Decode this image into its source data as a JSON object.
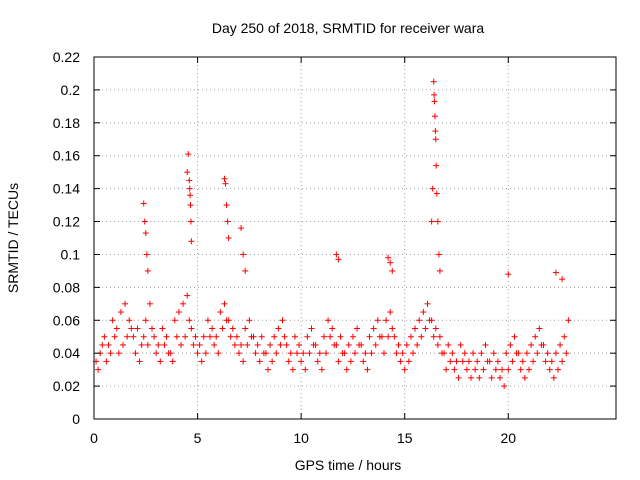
{
  "chart_data": {
    "type": "scatter",
    "title": "Day 250 of 2018, SRMTID for receiver wara",
    "xlabel": "GPS time / hours",
    "ylabel": "SRMTID / TECUs",
    "xlim": [
      0,
      25.2
    ],
    "ylim": [
      0,
      0.22
    ],
    "x_ticks": [
      0,
      5,
      10,
      15,
      20
    ],
    "x_tick_labels": [
      "0",
      "5",
      "10",
      "15",
      "20"
    ],
    "y_ticks": [
      0,
      0.02,
      0.04,
      0.06,
      0.08,
      0.1,
      0.12,
      0.14,
      0.16,
      0.18,
      0.2,
      0.22
    ],
    "y_tick_labels": [
      "0",
      "0.02",
      "0.04",
      "0.06",
      "0.08",
      "0.1",
      "0.12",
      "0.14",
      "0.16",
      "0.18",
      "0.2",
      "0.22"
    ],
    "grid": true,
    "marker": "+",
    "marker_color": "#ff0000",
    "series": [
      {
        "name": "SRMTID",
        "x": [
          0.1,
          0.3,
          0.5,
          0.7,
          0.9,
          1.1,
          1.3,
          1.5,
          1.7,
          1.9,
          2.1,
          2.3,
          2.5,
          2.7,
          2.9,
          3.1,
          3.3,
          3.5,
          3.7,
          3.9,
          4.1,
          4.3,
          4.5,
          4.7,
          4.9,
          5.1,
          5.3,
          5.5,
          5.7,
          5.9,
          6.1,
          6.3,
          6.5,
          6.7,
          6.9,
          7.1,
          7.3,
          7.5,
          7.7,
          7.9,
          8.1,
          8.3,
          8.5,
          8.7,
          8.9,
          9.1,
          9.3,
          9.5,
          9.7,
          9.9,
          10.1,
          10.3,
          10.5,
          10.7,
          10.9,
          11.1,
          11.3,
          11.5,
          11.7,
          11.9,
          12.1,
          12.3,
          12.5,
          12.7,
          12.9,
          13.1,
          13.3,
          13.5,
          13.7,
          13.9,
          14.1,
          14.3,
          14.5,
          14.7,
          14.9,
          15.1,
          15.3,
          15.5,
          15.7,
          15.9,
          16.1,
          16.3,
          16.5,
          16.7,
          16.9,
          17.1,
          17.3,
          17.5,
          17.7,
          17.9,
          18.1,
          18.3,
          18.5,
          18.7,
          18.9,
          19.1,
          19.3,
          19.5,
          19.7,
          19.9,
          20.1,
          20.3,
          20.5,
          20.7,
          20.9,
          21.1,
          21.3,
          21.5,
          21.7,
          21.9,
          22.1,
          22.3,
          22.5,
          22.7,
          22.9,
          0.2,
          0.4,
          0.6,
          0.8,
          1.0,
          1.2,
          1.4,
          1.6,
          1.8,
          2.0,
          2.2,
          2.4,
          2.6,
          2.8,
          3.0,
          3.2,
          3.4,
          3.6,
          3.8,
          4.0,
          4.2,
          4.4,
          4.6,
          4.8,
          5.0,
          5.2,
          5.4,
          5.6,
          5.8,
          6.0,
          6.2,
          6.4,
          6.6,
          6.8,
          7.0,
          7.2,
          7.4,
          7.6,
          7.8,
          8.0,
          8.2,
          8.4,
          8.6,
          8.8,
          9.0,
          9.2,
          9.4,
          9.6,
          9.8,
          10.0,
          10.2,
          10.4,
          10.6,
          10.8,
          11.0,
          11.2,
          11.4,
          11.6,
          11.8,
          12.0,
          12.2,
          12.4,
          12.6,
          12.8,
          13.0,
          13.2,
          13.4,
          13.6,
          13.8,
          14.0,
          14.2,
          14.4,
          14.6,
          14.8,
          15.0,
          15.2,
          15.4,
          15.6,
          15.8,
          16.0,
          16.2,
          16.4,
          16.6,
          16.8,
          17.0,
          17.2,
          17.4,
          17.6,
          17.8,
          18.0,
          18.2,
          18.4,
          18.6,
          18.8,
          19.0,
          19.2,
          19.4,
          19.6,
          19.8,
          20.0,
          20.2,
          20.4,
          20.6,
          20.8,
          21.0,
          21.2,
          21.4,
          21.6,
          21.8,
          22.0,
          22.2,
          22.4,
          22.6,
          22.8,
          2.4,
          2.45,
          2.5,
          2.55,
          2.6,
          4.5,
          4.55,
          4.6,
          4.62,
          4.64,
          4.66,
          4.68,
          4.7,
          6.3,
          6.35,
          6.4,
          6.45,
          6.5,
          7.1,
          7.2,
          7.3,
          16.3,
          16.35,
          16.4,
          16.42,
          16.44,
          16.46,
          16.48,
          16.5,
          16.52,
          16.55,
          16.6,
          16.65,
          16.7,
          14.2,
          14.3,
          14.4,
          11.7,
          11.8,
          20.0,
          22.3,
          22.6
        ],
        "y": [
          0.035,
          0.04,
          0.05,
          0.045,
          0.06,
          0.055,
          0.065,
          0.07,
          0.06,
          0.05,
          0.055,
          0.045,
          0.06,
          0.07,
          0.05,
          0.045,
          0.055,
          0.05,
          0.04,
          0.06,
          0.065,
          0.07,
          0.075,
          0.055,
          0.05,
          0.045,
          0.05,
          0.06,
          0.055,
          0.05,
          0.065,
          0.07,
          0.06,
          0.055,
          0.05,
          0.045,
          0.055,
          0.06,
          0.05,
          0.045,
          0.05,
          0.04,
          0.045,
          0.05,
          0.055,
          0.06,
          0.045,
          0.04,
          0.05,
          0.045,
          0.04,
          0.05,
          0.055,
          0.045,
          0.04,
          0.05,
          0.06,
          0.055,
          0.045,
          0.05,
          0.04,
          0.045,
          0.05,
          0.055,
          0.045,
          0.04,
          0.05,
          0.055,
          0.06,
          0.05,
          0.06,
          0.065,
          0.05,
          0.045,
          0.04,
          0.045,
          0.05,
          0.055,
          0.06,
          0.065,
          0.07,
          0.06,
          0.055,
          0.05,
          0.04,
          0.045,
          0.04,
          0.035,
          0.045,
          0.04,
          0.035,
          0.04,
          0.035,
          0.04,
          0.045,
          0.035,
          0.04,
          0.035,
          0.03,
          0.04,
          0.045,
          0.05,
          0.04,
          0.035,
          0.04,
          0.045,
          0.05,
          0.055,
          0.045,
          0.04,
          0.035,
          0.04,
          0.045,
          0.05,
          0.06,
          0.03,
          0.045,
          0.035,
          0.04,
          0.05,
          0.04,
          0.045,
          0.05,
          0.055,
          0.04,
          0.035,
          0.05,
          0.045,
          0.055,
          0.04,
          0.035,
          0.045,
          0.04,
          0.035,
          0.05,
          0.045,
          0.05,
          0.06,
          0.045,
          0.04,
          0.035,
          0.04,
          0.05,
          0.045,
          0.04,
          0.055,
          0.06,
          0.05,
          0.045,
          0.04,
          0.035,
          0.045,
          0.05,
          0.04,
          0.035,
          0.04,
          0.03,
          0.035,
          0.04,
          0.045,
          0.05,
          0.035,
          0.03,
          0.04,
          0.035,
          0.03,
          0.04,
          0.045,
          0.035,
          0.03,
          0.04,
          0.05,
          0.045,
          0.035,
          0.04,
          0.03,
          0.035,
          0.04,
          0.045,
          0.035,
          0.03,
          0.04,
          0.045,
          0.05,
          0.04,
          0.05,
          0.055,
          0.04,
          0.035,
          0.03,
          0.035,
          0.04,
          0.045,
          0.05,
          0.055,
          0.06,
          0.05,
          0.045,
          0.04,
          0.03,
          0.035,
          0.03,
          0.025,
          0.035,
          0.03,
          0.025,
          0.03,
          0.025,
          0.03,
          0.035,
          0.025,
          0.03,
          0.025,
          0.02,
          0.03,
          0.035,
          0.04,
          0.03,
          0.025,
          0.03,
          0.035,
          0.04,
          0.045,
          0.035,
          0.03,
          0.025,
          0.03,
          0.035,
          0.04,
          0.131,
          0.12,
          0.113,
          0.1,
          0.09,
          0.15,
          0.161,
          0.145,
          0.14,
          0.136,
          0.13,
          0.12,
          0.108,
          0.146,
          0.143,
          0.13,
          0.12,
          0.11,
          0.116,
          0.1,
          0.09,
          0.12,
          0.14,
          0.205,
          0.197,
          0.193,
          0.184,
          0.175,
          0.17,
          0.154,
          0.137,
          0.12,
          0.1,
          0.09,
          0.098,
          0.095,
          0.09,
          0.1,
          0.097,
          0.088,
          0.089,
          0.085
        ]
      }
    ]
  }
}
